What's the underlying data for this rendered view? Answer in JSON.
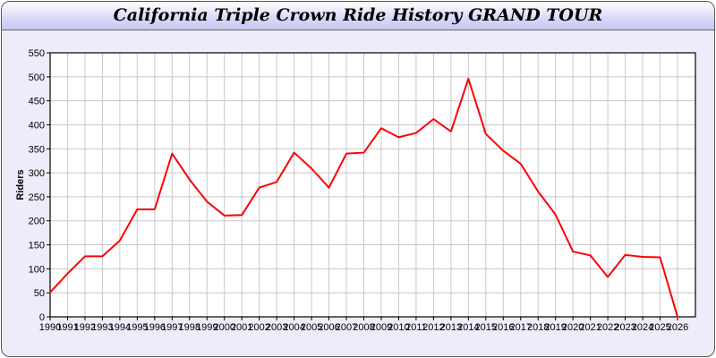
{
  "chart_data": {
    "type": "line",
    "title": "California Triple Crown Ride History GRAND TOUR",
    "xlabel": "",
    "ylabel": "Riders",
    "ylim": [
      0,
      550
    ],
    "yticks": [
      0,
      50,
      100,
      150,
      200,
      250,
      300,
      350,
      400,
      450,
      500,
      550
    ],
    "grid": true,
    "line_color": "#ff0000",
    "x": [
      1990,
      1991,
      1992,
      1993,
      1994,
      1995,
      1996,
      1997,
      1998,
      1999,
      2000,
      2001,
      2002,
      2003,
      2004,
      2005,
      2006,
      2007,
      2008,
      2009,
      2010,
      2011,
      2012,
      2013,
      2014,
      2015,
      2016,
      2017,
      2018,
      2019,
      2020,
      2021,
      2022,
      2023,
      2024,
      2025,
      2026
    ],
    "values": [
      51,
      90,
      126,
      126,
      159,
      224,
      224,
      340,
      286,
      240,
      211,
      212,
      269,
      281,
      342,
      309,
      269,
      340,
      342,
      393,
      374,
      383,
      412,
      386,
      496,
      381,
      346,
      319,
      261,
      213,
      136,
      128,
      83,
      129,
      125,
      124,
      0
    ]
  }
}
